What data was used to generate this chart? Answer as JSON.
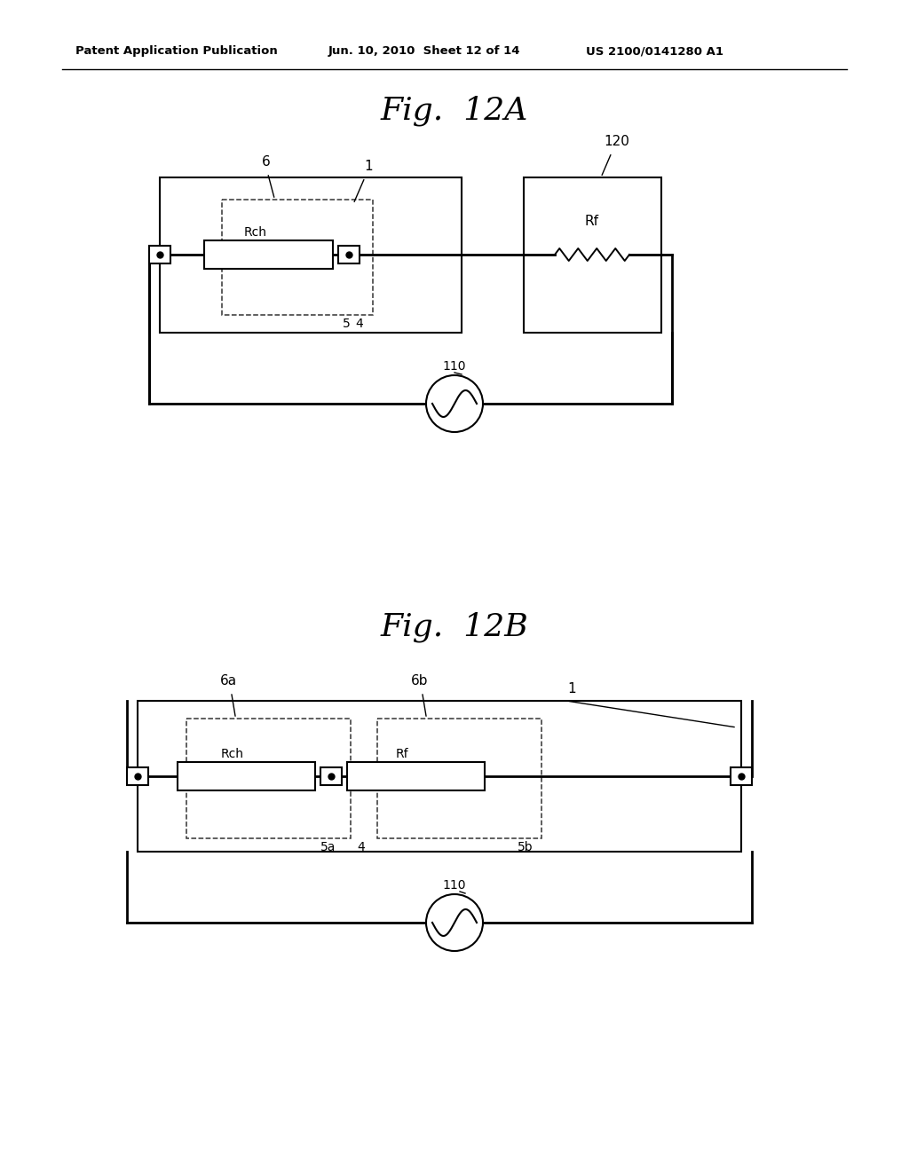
{
  "bg_color": "#ffffff",
  "header_left": "Patent Application Publication",
  "header_mid": "Jun. 10, 2010  Sheet 12 of 14",
  "header_right": "US 2100/0141280 A1",
  "fig_a_title": "Fig.  12A",
  "fig_b_title": "Fig.  12B",
  "line_color": "#000000",
  "lw_main": 1.5,
  "lw_thick": 2.0,
  "lw_thin": 1.2
}
